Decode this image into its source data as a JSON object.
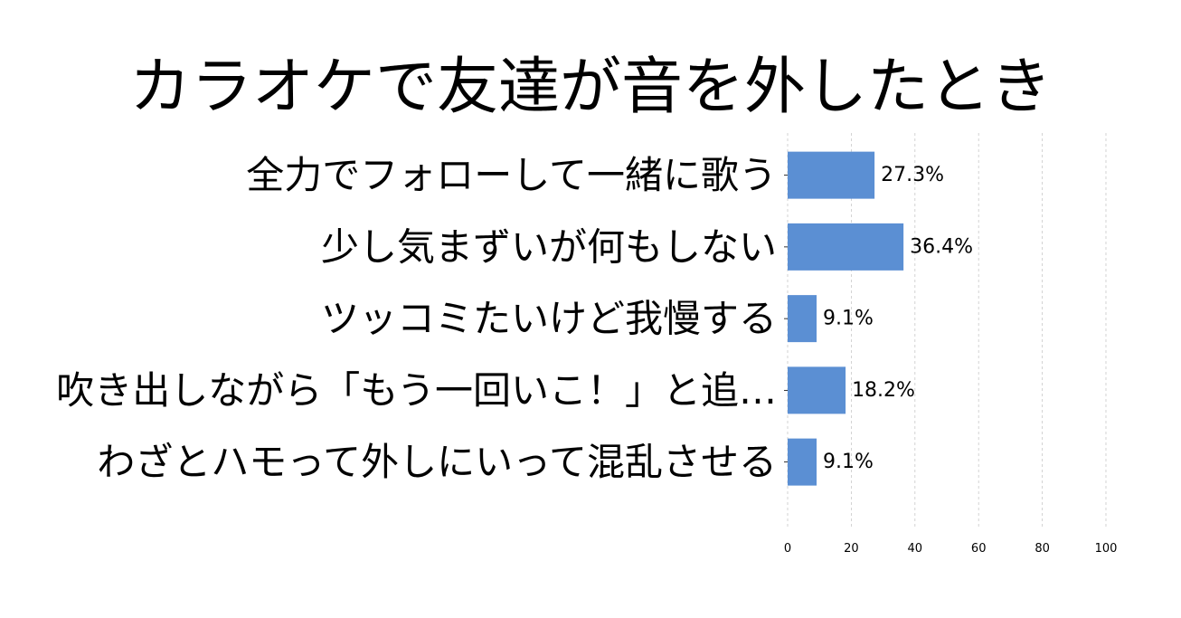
{
  "chart_data": {
    "type": "bar",
    "orientation": "horizontal",
    "title": "カラオケで友達が音を外したとき",
    "categories": [
      "全力でフォローして一緒に歌う",
      "少し気まずいが何もしない",
      "ツッコミたいけど我慢する",
      "吹き出しながら「もう一回いこ！」と追…",
      "わざとハモって外しにいって混乱させる"
    ],
    "values": [
      27.3,
      36.4,
      9.1,
      18.2,
      9.1
    ],
    "value_labels": [
      "27.3%",
      "36.4%",
      "9.1%",
      "18.2%",
      "9.1%"
    ],
    "xlim": [
      0,
      100
    ],
    "xticks": [
      0,
      20,
      40,
      60,
      80,
      100
    ],
    "xtick_labels": [
      "0",
      "20",
      "40",
      "60",
      "80",
      "100"
    ],
    "xlabel": "",
    "ylabel": "",
    "grid": "vertical-dashed",
    "legend": "none",
    "bar_color": "#5b8fd3"
  }
}
